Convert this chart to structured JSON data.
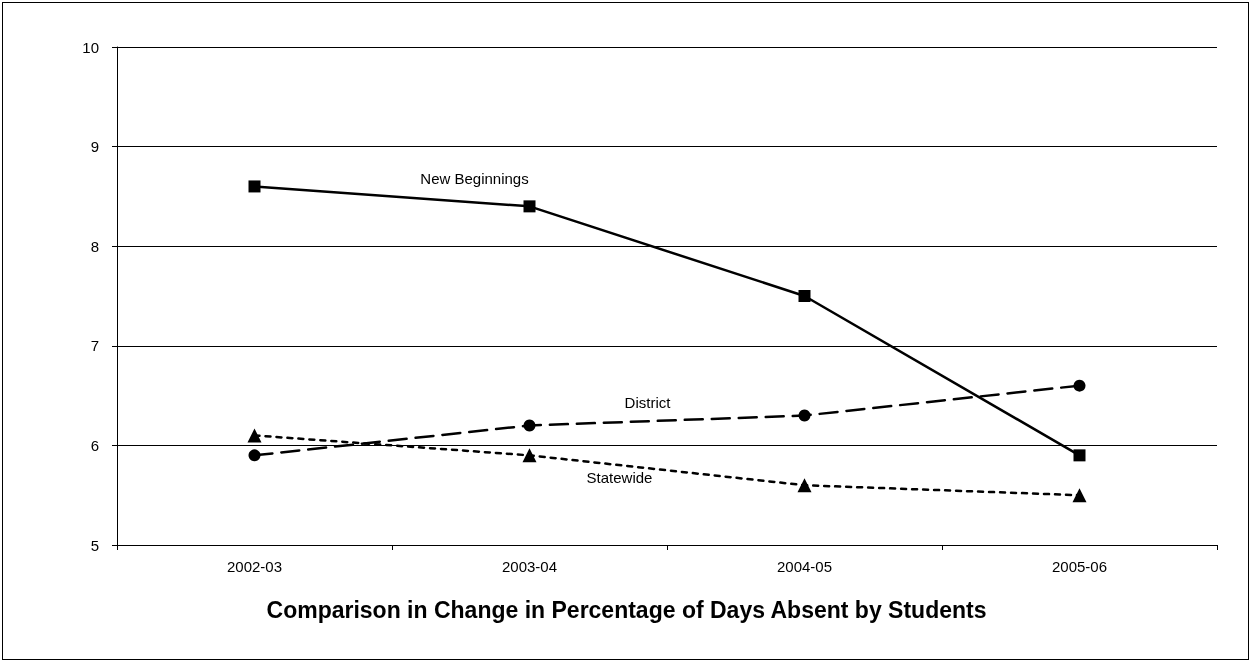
{
  "chart_data": {
    "type": "line",
    "title": "Comparison in Change in Percentage of Days Absent by Students",
    "categories": [
      "2002-03",
      "2003-04",
      "2004-05",
      "2005-06"
    ],
    "series": [
      {
        "name": "New Beginnings",
        "color": "#000000",
        "marker": "square",
        "line_style": "solid",
        "values": [
          8.6,
          8.4,
          7.5,
          5.9
        ]
      },
      {
        "name": "District",
        "color": "#000000",
        "marker": "circle",
        "line_style": "dashed",
        "values": [
          5.9,
          6.2,
          6.3,
          6.6
        ]
      },
      {
        "name": "Statewide",
        "color": "#000000",
        "marker": "triangle",
        "line_style": "dotted",
        "values": [
          6.1,
          5.9,
          5.6,
          5.5
        ]
      }
    ],
    "ylim": [
      5,
      10
    ],
    "yticks": [
      5,
      6,
      7,
      8,
      9,
      10
    ],
    "grid": "y",
    "legend": false
  }
}
